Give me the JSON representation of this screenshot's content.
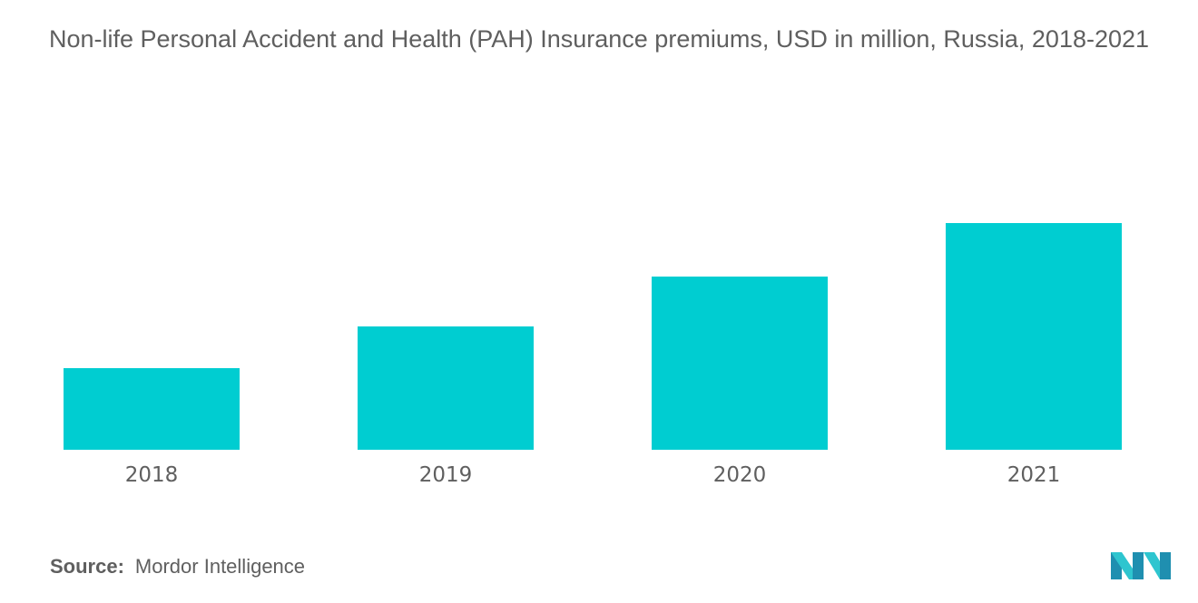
{
  "title": "Non-life Personal Accident and Health (PAH) Insurance premiums, USD in million, Russia, 2018-2021",
  "source": {
    "label": "Source:",
    "value": "Mordor Intelligence"
  },
  "colors": {
    "bar": "#00cdd1",
    "text": "#5f5f5f",
    "logo_dark": "#1f8fb0",
    "logo_light": "#2ec5cf"
  },
  "logo_icon": "mordor-intelligence-logo-icon",
  "chart_data": {
    "type": "bar",
    "categories": [
      "2018",
      "2019",
      "2020",
      "2021"
    ],
    "values": [
      90,
      136,
      191,
      250
    ],
    "title": "Non-life Personal Accident and Health (PAH) Insurance premiums, USD in million, Russia, 2018-2021",
    "xlabel": "",
    "ylabel": "",
    "ylim": [
      0,
      250
    ],
    "grid": false,
    "legend": "none",
    "y_axis_visible": false
  }
}
